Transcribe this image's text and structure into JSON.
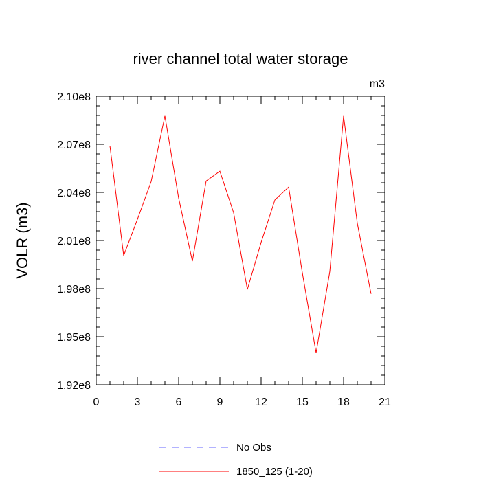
{
  "chart_data": {
    "type": "line",
    "title": "river channel total water storage",
    "units_label": "m3",
    "xlabel": "",
    "ylabel": "VOLR  (m3)",
    "xlim": [
      0,
      21
    ],
    "ylim": [
      192000000.0,
      210000000.0
    ],
    "x_ticks": [
      0,
      3,
      6,
      9,
      12,
      15,
      18,
      21
    ],
    "x_tick_labels": [
      "0",
      "3",
      "6",
      "9",
      "12",
      "15",
      "18",
      "21"
    ],
    "y_ticks": [
      192000000.0,
      195000000.0,
      198000000.0,
      201000000.0,
      204000000.0,
      207000000.0,
      210000000.0
    ],
    "y_tick_labels": [
      "1.92e8",
      "1.95e8",
      "1.98e8",
      "2.01e8",
      "2.04e8",
      "2.07e8",
      "2.10e8"
    ],
    "grid": false,
    "legend_position": "bottom",
    "legend": [
      {
        "name": "No Obs",
        "color": "#6666ff",
        "dash": "dashed"
      },
      {
        "name": "1850_125 (1-20)",
        "color": "#ff0000",
        "dash": "solid"
      }
    ],
    "series": [
      {
        "name": "1850_125 (1-20)",
        "color": "#ff0000",
        "x": [
          1,
          2,
          3,
          4,
          5,
          6,
          7,
          8,
          9,
          10,
          11,
          12,
          13,
          14,
          15,
          16,
          17,
          18,
          19,
          20
        ],
        "y": [
          206900000.0,
          200060000.0,
          202320000.0,
          204680000.0,
          208770000.0,
          203640000.0,
          199710000.0,
          204710000.0,
          205320000.0,
          202730000.0,
          197950000.0,
          200880000.0,
          203530000.0,
          204330000.0,
          198980000.0,
          193990000.0,
          199080000.0,
          208770000.0,
          202070000.0,
          197670000.0
        ]
      }
    ]
  }
}
